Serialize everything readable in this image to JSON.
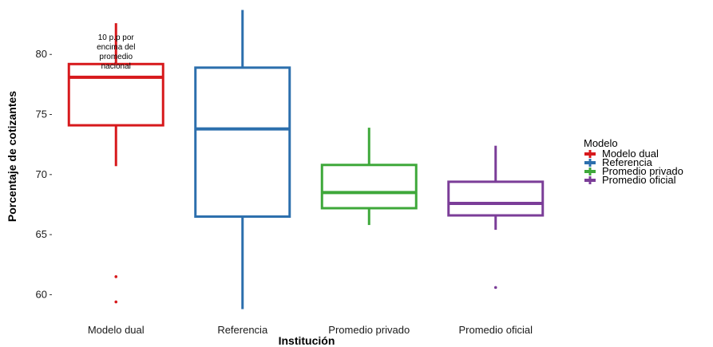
{
  "chart_data": {
    "type": "boxplot",
    "xlabel": "Institución",
    "ylabel": "Porcentaje de cotizantes",
    "ylim": [
      58.5,
      84
    ],
    "yticks": [
      60,
      65,
      70,
      75,
      80
    ],
    "grid": false,
    "legend": {
      "title": "Modelo",
      "position": "right",
      "entries": [
        "Modelo dual",
        "Referencia",
        "Promedio privado",
        "Promedio oficial"
      ]
    },
    "categories": [
      "Modelo dual",
      "Referencia",
      "Promedio privado",
      "Promedio oficial"
    ],
    "series": [
      {
        "name": "Modelo dual",
        "color": "#d7191c",
        "whisker_low": 70.7,
        "q1": 74.1,
        "median": 78.1,
        "q3": 79.2,
        "whisker_high": 82.6,
        "outliers": [
          61.5,
          59.4
        ]
      },
      {
        "name": "Referencia",
        "color": "#2c6fad",
        "whisker_low": 58.8,
        "q1": 66.5,
        "median": 73.8,
        "q3": 78.9,
        "whisker_high": 83.7,
        "outliers": []
      },
      {
        "name": "Promedio privado",
        "color": "#3ea83a",
        "whisker_low": 65.8,
        "q1": 67.2,
        "median": 68.5,
        "q3": 70.8,
        "whisker_high": 73.9,
        "outliers": []
      },
      {
        "name": "Promedio oficial",
        "color": "#7b3d98",
        "whisker_low": 65.4,
        "q1": 66.6,
        "median": 67.6,
        "q3": 69.4,
        "whisker_high": 72.4,
        "outliers": [
          60.6
        ]
      }
    ],
    "annotations": [
      {
        "category": "Modelo dual",
        "lines": [
          "10 p.p por",
          "encima del",
          "promedio",
          "nacional"
        ]
      }
    ]
  }
}
